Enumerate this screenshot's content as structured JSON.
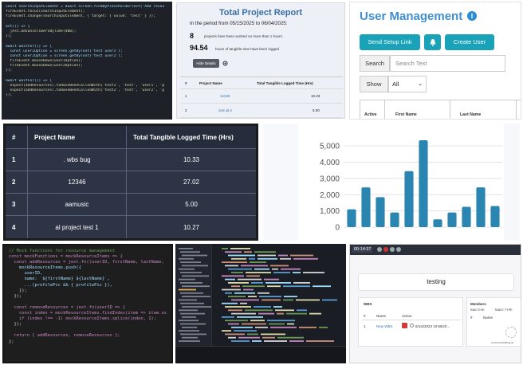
{
  "panel1": {
    "lines": [
      "const searchInputElement = await screen.findByPlaceholderText('Add resou",
      "fireEvent.focus(searchInputElement);",
      "fireEvent.change(searchInputElement, { target: { value: 'test' } });",
      "",
      "act(() => {",
      "  jest.advanceTimersByTime(400);",
      "});",
      "",
      "await waitFor(() => {",
      "  const user1Option = screen.getByText('test user1');",
      "  const user2Option = screen.getByText('test user2');",
      "  fireEvent.mouseDown(user1Option);",
      "  fireEvent.mouseDown(user2Option);",
      "});",
      "",
      "await waitFor(() => {",
      "  expect(addResources).toHaveBeenCalledWith('test1', 'test', 'user1', 'p",
      "  expect(addResources).toHaveBeenCalledWith('test2', 'test', 'user2', 'p",
      "});"
    ]
  },
  "report": {
    "title": "Total Project Report",
    "period": "In the period from 05/15/2025 to 06/04/2025:",
    "stat1_value": "8",
    "stat1_label": "projects have been worked on more than 1 hours.",
    "stat2_value": "94.54",
    "stat2_label": "hours of tangible time have been logged",
    "hide_button": "Hide Details",
    "col_num": "#",
    "col_name": "Project Name",
    "col_time": "Total Tangible Logged Time (Hrs)",
    "rows": [
      {
        "num": "1",
        "name": "12345",
        "time": "10.33"
      },
      {
        "num": "2",
        "name": "sam.pl.e",
        "time": "5.00"
      }
    ]
  },
  "users": {
    "title": "User Management",
    "info_icon": "i",
    "setup_button": "Send Setup Link",
    "bell_icon": "bell-icon",
    "create_button": "Create User",
    "search_label": "Search",
    "search_placeholder": "Search Text",
    "show_label": "Show",
    "show_value": "All",
    "col_active": "Active",
    "col_first": "First Name",
    "col_last": "Last Name"
  },
  "projects": {
    "col_num": "#",
    "col_name": "Project Name",
    "col_time": "Total Tangible Logged Time (Hrs)",
    "rows": [
      {
        "num": "1",
        "name": ". wbs bug",
        "time": "10.33"
      },
      {
        "num": "2",
        "name": "12346",
        "time": "27.02"
      },
      {
        "num": "3",
        "name": "aamusic",
        "time": "5.00"
      },
      {
        "num": "4",
        "name": "al project test 1",
        "time": "10.27"
      }
    ]
  },
  "chart_data": {
    "type": "bar",
    "values": [
      1100,
      2450,
      1850,
      900,
      3450,
      5350,
      480,
      900,
      1250,
      2450,
      1300
    ],
    "ylim": [
      0,
      5500
    ],
    "yticks": [
      0,
      1000,
      2000,
      3000,
      4000,
      5000
    ],
    "ytick_labels": [
      "0",
      "1,000",
      "2,000",
      "3,000",
      "4,000",
      "5,000"
    ],
    "color": "#2a86b0",
    "grid": true
  },
  "panel6": {
    "lines": [
      "// Mock functions for resource management",
      "const mockFunctions = mockResourceItems => {",
      "  const addResources = jest.fn((userID, firstName, lastName, p",
      "    mockResourceItems.push({",
      "      userID,",
      "      name: `${firstName} ${lastName}`,",
      "      ...(profilePic && { profilePic }),",
      "    });",
      "  });",
      "",
      "  const removeResources = jest.fn(userID => {",
      "    const index = mockResourceItems.findIndex(item => item.use",
      "    if (index !== -1) mockResourceItems.splice(index, 1);",
      "  });",
      "",
      "  return { addResources, removeResources };",
      "};"
    ]
  },
  "app": {
    "timer": "00:14:37",
    "title": "testing",
    "wbs_header": "WBS",
    "wbs_col_num": "#",
    "wbs_col_name": "Name",
    "wbs_col_action": "Action",
    "wbs_row_num": "1",
    "wbs_row_name": "New WBS",
    "wbs_row_date": "6/1st/2023 10:58/cfr...",
    "members_header": "Members",
    "members_toggle": "INACTIVE",
    "members_toggle2": "TABLE TYPE",
    "members_col_num": "#",
    "members_col_name": "Name",
    "logo_text": "communicating.ai"
  }
}
